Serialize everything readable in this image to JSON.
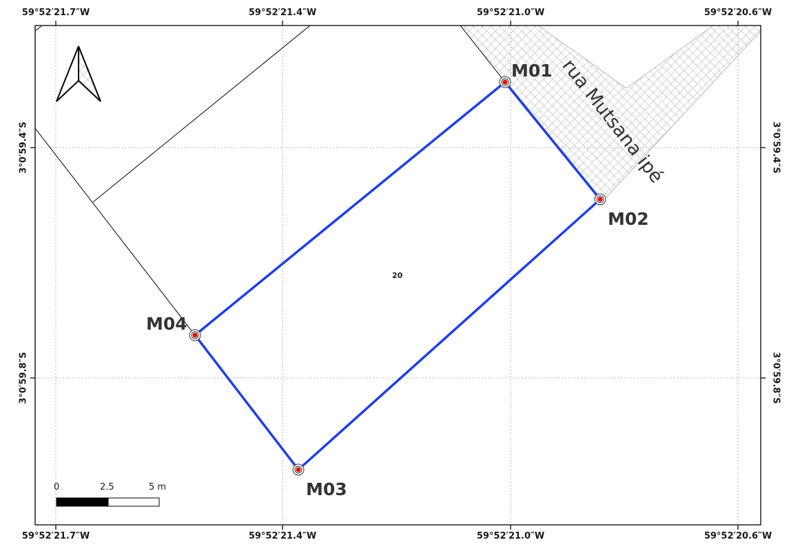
{
  "grid_labels": {
    "top": [
      "59°52′21.7″W",
      "59°52′21.4″W",
      "59°52′21.0″W",
      "59°52′20.6″W"
    ],
    "bottom": [
      "59°52′21.7″W",
      "59°52′21.4″W",
      "59°52′21.0″W",
      "59°52′20.6″W"
    ],
    "left": [
      "3°0′59.4″S",
      "3°0′59.8″S"
    ],
    "right": [
      "3°0′59.4″S",
      "3°0′59.8″S"
    ]
  },
  "markers": [
    {
      "id": "M01",
      "label": "M01"
    },
    {
      "id": "M02",
      "label": "M02"
    },
    {
      "id": "M03",
      "label": "M03"
    },
    {
      "id": "M04",
      "label": "M04"
    }
  ],
  "road": {
    "label": "rua Mutsana ipé"
  },
  "lot": {
    "label": "20"
  },
  "scale_bar": {
    "labels": [
      "0",
      "2.5",
      "5 m"
    ]
  },
  "colors": {
    "boundary": "#1f3ee6",
    "marker_fill": "#e01010",
    "road_hatch": "#b8b8b8",
    "grid": "#a0a0a0",
    "frame": "#222222"
  },
  "icons": {
    "north_arrow": "north-arrow-icon"
  }
}
